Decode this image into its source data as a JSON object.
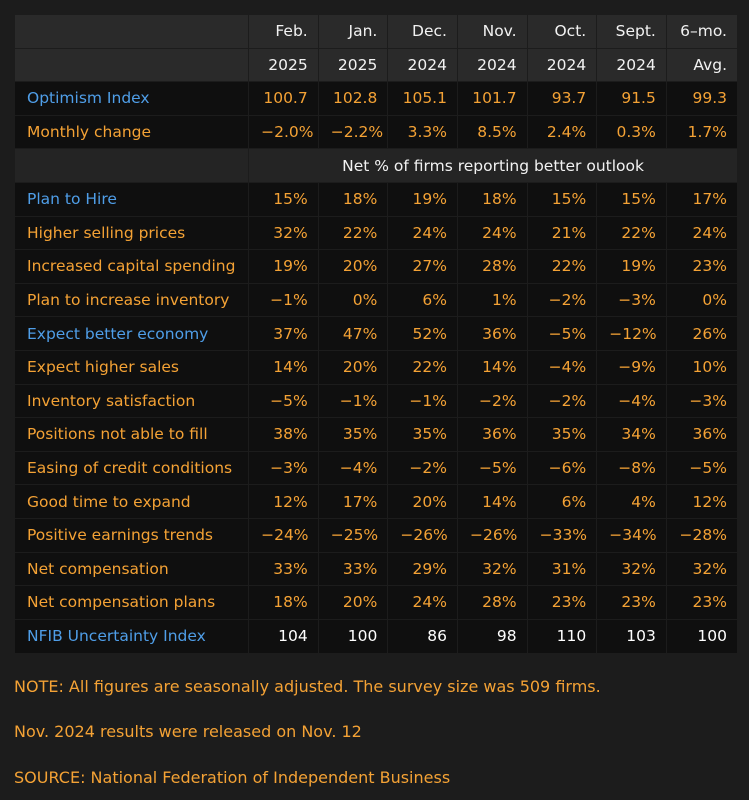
{
  "chart_data": {
    "type": "table",
    "columns": [
      {
        "month": "Feb.",
        "year": "2025"
      },
      {
        "month": "Jan.",
        "year": "2025"
      },
      {
        "month": "Dec.",
        "year": "2024"
      },
      {
        "month": "Nov.",
        "year": "2024"
      },
      {
        "month": "Oct.",
        "year": "2024"
      },
      {
        "month": "Sept.",
        "year": "2024"
      },
      {
        "month": "6–mo.",
        "year": "Avg."
      }
    ],
    "optimism": {
      "label": "Optimism Index",
      "values": [
        "100.7",
        "102.8",
        "105.1",
        "101.7",
        "93.7",
        "91.5",
        "99.3"
      ]
    },
    "monthly_change": {
      "label": "Monthly change",
      "values": [
        "−2.0%",
        "−2.2%",
        "3.3%",
        "8.5%",
        "2.4%",
        "0.3%",
        "1.7%"
      ]
    },
    "section_label": "Net % of firms reporting better outlook",
    "rows": [
      {
        "label": "Plan to Hire",
        "label_color": "#4f9ee8",
        "values": [
          "15%",
          "18%",
          "19%",
          "18%",
          "15%",
          "15%",
          "17%"
        ]
      },
      {
        "label": "Higher selling prices",
        "label_color": "#f4a235",
        "values": [
          "32%",
          "22%",
          "24%",
          "24%",
          "21%",
          "22%",
          "24%"
        ]
      },
      {
        "label": "Increased capital spending",
        "label_color": "#f4a235",
        "values": [
          "19%",
          "20%",
          "27%",
          "28%",
          "22%",
          "19%",
          "23%"
        ]
      },
      {
        "label": "Plan to increase inventory",
        "label_color": "#f4a235",
        "values": [
          "−1%",
          "0%",
          "6%",
          "1%",
          "−2%",
          "−3%",
          "0%"
        ]
      },
      {
        "label": "Expect better economy",
        "label_color": "#4f9ee8",
        "values": [
          "37%",
          "47%",
          "52%",
          "36%",
          "−5%",
          "−12%",
          "26%"
        ]
      },
      {
        "label": "Expect higher sales",
        "label_color": "#f4a235",
        "values": [
          "14%",
          "20%",
          "22%",
          "14%",
          "−4%",
          "−9%",
          "10%"
        ]
      },
      {
        "label": "Inventory satisfaction",
        "label_color": "#f4a235",
        "values": [
          "−5%",
          "−1%",
          "−1%",
          "−2%",
          "−2%",
          "−4%",
          "−3%"
        ]
      },
      {
        "label": "Positions not able to fill",
        "label_color": "#f4a235",
        "values": [
          "38%",
          "35%",
          "35%",
          "36%",
          "35%",
          "34%",
          "36%"
        ]
      },
      {
        "label": "Easing of credit conditions",
        "label_color": "#f4a235",
        "values": [
          "−3%",
          "−4%",
          "−2%",
          "−5%",
          "−6%",
          "−8%",
          "−5%"
        ]
      },
      {
        "label": "Good time to expand",
        "label_color": "#f4a235",
        "values": [
          "12%",
          "17%",
          "20%",
          "14%",
          "6%",
          "4%",
          "12%"
        ]
      },
      {
        "label": "Positive earnings trends",
        "label_color": "#f4a235",
        "values": [
          "−24%",
          "−25%",
          "−26%",
          "−26%",
          "−33%",
          "−34%",
          "−28%"
        ]
      },
      {
        "label": "Net compensation",
        "label_color": "#f4a235",
        "values": [
          "33%",
          "33%",
          "29%",
          "32%",
          "31%",
          "32%",
          "32%"
        ]
      },
      {
        "label": "Net compensation plans",
        "label_color": "#f4a235",
        "values": [
          "18%",
          "20%",
          "24%",
          "28%",
          "23%",
          "23%",
          "23%"
        ]
      }
    ],
    "uncertainty": {
      "label": "NFIB Uncertainty Index",
      "values": [
        "104",
        "100",
        "86",
        "98",
        "110",
        "103",
        "100"
      ]
    }
  },
  "notes": {
    "note": "NOTE: All figures are seasonally adjusted. The survey size was 509 firms.",
    "release": "Nov. 2024 results were released on Nov. 12",
    "source": "SOURCE: National Federation of Independent Business"
  },
  "colors": {
    "blue_label": "#4f9ee8",
    "orange_label": "#f4a235",
    "background": "#1c1c1c"
  }
}
